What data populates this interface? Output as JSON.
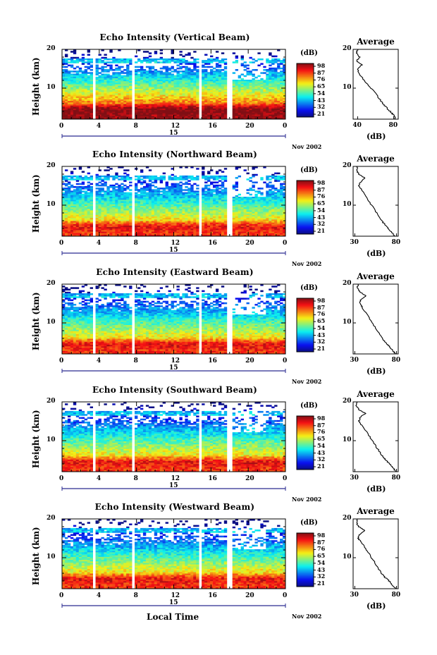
{
  "x_axis_title": "Local Time",
  "y_axis_title": "Height (km)",
  "unit_label": "(dB)",
  "average_title": "Average",
  "date_label": "Nov 2002",
  "day_label": "15",
  "x_ticks": [
    "0",
    "4",
    "8",
    "12",
    "16",
    "20",
    "0"
  ],
  "y_ticks": [
    "20",
    "10"
  ],
  "colorbar_ticks": [
    "98",
    "87",
    "76",
    "65",
    "54",
    "43",
    "32",
    "21"
  ],
  "colors": {
    "low": "#2020b0",
    "mid": "#40c0e0",
    "high": "#f03010"
  },
  "chart_data": [
    {
      "type": "heatmap",
      "title": "Echo Intensity (Vertical Beam)",
      "xlabel": "Local Time",
      "ylabel": "Height (km)",
      "xlim": [
        0,
        24
      ],
      "ylim": [
        2,
        20
      ],
      "colorbar_range": [
        21,
        98
      ],
      "average_profile": {
        "title": "Average",
        "xlabel": "(dB)",
        "xticks": [
          "40",
          "80"
        ],
        "xlim": [
          35,
          85
        ],
        "height": [
          2,
          3,
          4,
          5,
          6,
          8,
          10,
          12,
          14,
          15,
          16,
          17,
          18,
          19,
          20
        ],
        "db": [
          82,
          80,
          76,
          72,
          68,
          62,
          55,
          47,
          41,
          40,
          45,
          39,
          42,
          39,
          40
        ]
      }
    },
    {
      "type": "heatmap",
      "title": "Echo Intensity (Northward Beam)",
      "xlabel": "Local Time",
      "ylabel": "Height (km)",
      "xlim": [
        0,
        24
      ],
      "ylim": [
        2,
        20
      ],
      "colorbar_range": [
        21,
        98
      ],
      "average_profile": {
        "title": "Average",
        "xlabel": "(dB)",
        "xticks": [
          "30",
          "80"
        ],
        "xlim": [
          28,
          82
        ],
        "height": [
          2,
          3,
          4,
          5,
          6,
          8,
          10,
          12,
          14,
          15,
          16,
          17,
          18,
          19,
          20
        ],
        "db": [
          78,
          74,
          70,
          66,
          62,
          56,
          50,
          44,
          38,
          35,
          37,
          42,
          35,
          32,
          33
        ]
      }
    },
    {
      "type": "heatmap",
      "title": "Echo Intensity (Eastward Beam)",
      "xlabel": "Local Time",
      "ylabel": "Height (km)",
      "xlim": [
        0,
        24
      ],
      "ylim": [
        2,
        20
      ],
      "colorbar_range": [
        21,
        98
      ],
      "average_profile": {
        "title": "Average",
        "xlabel": "(dB)",
        "xticks": [
          "30",
          "80"
        ],
        "xlim": [
          28,
          82
        ],
        "height": [
          2,
          3,
          4,
          5,
          6,
          8,
          10,
          12,
          14,
          15,
          16,
          17,
          18,
          19,
          20
        ],
        "db": [
          79,
          75,
          71,
          67,
          63,
          57,
          51,
          45,
          39,
          36,
          37,
          43,
          36,
          33,
          34
        ]
      }
    },
    {
      "type": "heatmap",
      "title": "Echo Intensity (Southward Beam)",
      "xlabel": "Local Time",
      "ylabel": "Height (km)",
      "xlim": [
        0,
        24
      ],
      "ylim": [
        2,
        20
      ],
      "colorbar_range": [
        21,
        98
      ],
      "average_profile": {
        "title": "Average",
        "xlabel": "(dB)",
        "xticks": [
          "30",
          "80"
        ],
        "xlim": [
          28,
          82
        ],
        "height": [
          2,
          3,
          4,
          5,
          6,
          8,
          10,
          12,
          14,
          15,
          16,
          17,
          18,
          19,
          20
        ],
        "db": [
          79,
          76,
          72,
          67,
          63,
          57,
          51,
          45,
          38,
          35,
          36,
          43,
          35,
          32,
          33
        ]
      }
    },
    {
      "type": "heatmap",
      "title": "Echo Intensity (Westward Beam)",
      "xlabel": "Local Time",
      "ylabel": "Height (km)",
      "xlim": [
        0,
        24
      ],
      "ylim": [
        2,
        20
      ],
      "colorbar_range": [
        21,
        98
      ],
      "average_profile": {
        "title": "Average",
        "xlabel": "(dB)",
        "xticks": [
          "30",
          "80"
        ],
        "xlim": [
          28,
          82
        ],
        "height": [
          2,
          3,
          4,
          5,
          6,
          8,
          10,
          12,
          14,
          15,
          16,
          17,
          18,
          19,
          20
        ],
        "db": [
          79,
          75,
          71,
          66,
          62,
          56,
          50,
          44,
          38,
          34,
          36,
          42,
          35,
          32,
          33
        ]
      }
    }
  ]
}
